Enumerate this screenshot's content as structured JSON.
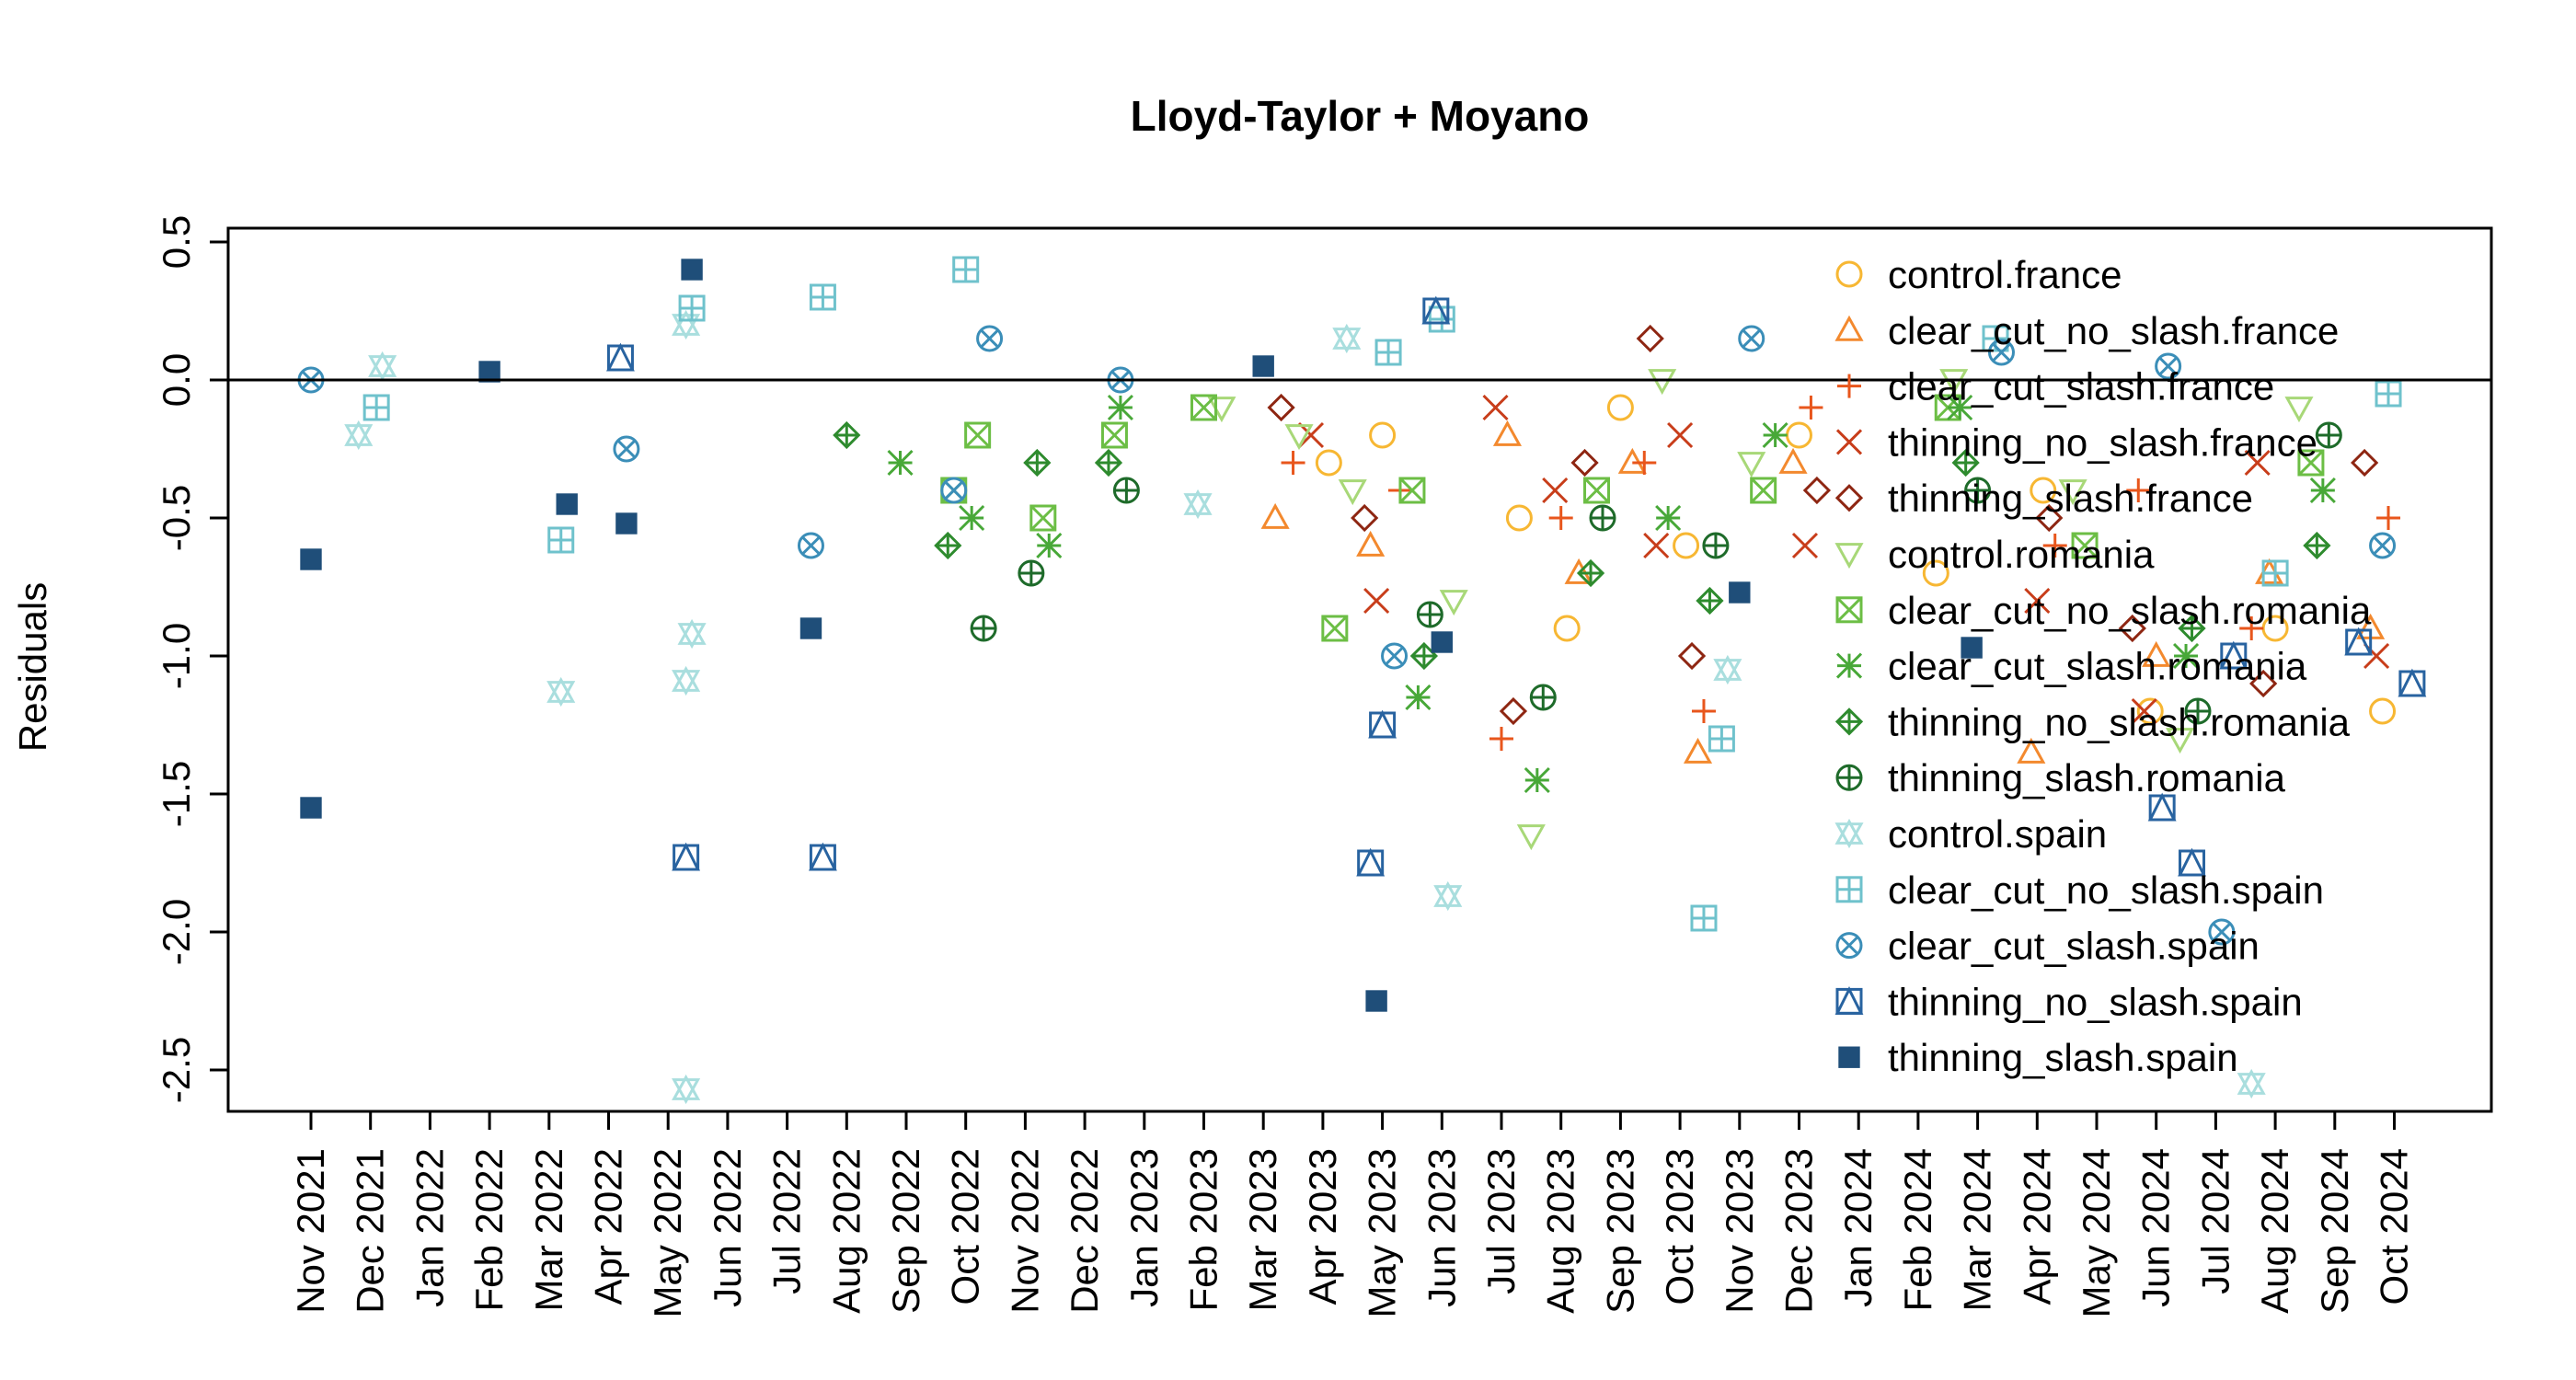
{
  "chart_data": {
    "type": "scatter",
    "title": "Lloyd-Taylor + Moyano",
    "xlabel": "",
    "ylabel": "Residuals",
    "ylim": [
      -2.65,
      0.55
    ],
    "yticks": [
      0.5,
      0.0,
      -0.5,
      -1.0,
      -1.5,
      -2.0,
      -2.5
    ],
    "ytick_labels": [
      "0.5",
      "0.0",
      "-0.5",
      "-1.0",
      "-1.5",
      "-2.0",
      "-2.5"
    ],
    "hline": 0,
    "categories": [
      "Nov 2021",
      "Dec 2021",
      "Jan 2022",
      "Feb 2022",
      "Mar 2022",
      "Apr 2022",
      "May 2022",
      "Jun 2022",
      "Jul 2022",
      "Aug 2022",
      "Sep 2022",
      "Oct 2022",
      "Nov 2022",
      "Dec 2022",
      "Jan 2023",
      "Feb 2023",
      "Mar 2023",
      "Apr 2023",
      "May 2023",
      "Jun 2023",
      "Jul 2023",
      "Aug 2023",
      "Sep 2023",
      "Oct 2023",
      "Nov 2023",
      "Dec 2023",
      "Jan 2024",
      "Feb 2024",
      "Mar 2024",
      "Apr 2024",
      "May 2024",
      "Jun 2024",
      "Jul 2024",
      "Aug 2024",
      "Sep 2024",
      "Oct 2024"
    ],
    "legend_position": "top-right",
    "series": [
      {
        "name": "control.france",
        "color": "#F7B733",
        "marker": "circle",
        "points": [
          [
            17.1,
            -0.3
          ],
          [
            18.0,
            -0.2
          ],
          [
            20.3,
            -0.5
          ],
          [
            21.1,
            -0.9
          ],
          [
            22.0,
            -0.1
          ],
          [
            23.1,
            -0.6
          ],
          [
            25.0,
            -0.2
          ],
          [
            27.3,
            -0.7
          ],
          [
            29.1,
            -0.4
          ],
          [
            30.9,
            -1.2
          ],
          [
            33.0,
            -0.9
          ],
          [
            34.8,
            -1.2
          ]
        ]
      },
      {
        "name": "clear_cut_no_slash.france",
        "color": "#F3892E",
        "marker": "triangle-up",
        "points": [
          [
            16.2,
            -0.5
          ],
          [
            17.8,
            -0.6
          ],
          [
            20.1,
            -0.2
          ],
          [
            21.3,
            -0.7
          ],
          [
            22.2,
            -0.3
          ],
          [
            23.3,
            -1.35
          ],
          [
            24.9,
            -0.3
          ],
          [
            28.9,
            -1.35
          ],
          [
            31.0,
            -1.0
          ],
          [
            32.9,
            -0.7
          ],
          [
            34.6,
            -0.9
          ]
        ]
      },
      {
        "name": "clear_cut_slash.france",
        "color": "#E8561C",
        "marker": "plus",
        "points": [
          [
            16.5,
            -0.3
          ],
          [
            18.3,
            -0.4
          ],
          [
            20.0,
            -1.3
          ],
          [
            21.0,
            -0.5
          ],
          [
            22.4,
            -0.3
          ],
          [
            23.4,
            -1.2
          ],
          [
            25.2,
            -0.1
          ],
          [
            29.3,
            -0.6
          ],
          [
            30.7,
            -0.4
          ],
          [
            32.6,
            -0.9
          ],
          [
            34.9,
            -0.5
          ]
        ]
      },
      {
        "name": "thinning_no_slash.france",
        "color": "#C83D1A",
        "marker": "x",
        "points": [
          [
            16.8,
            -0.2
          ],
          [
            17.9,
            -0.8
          ],
          [
            19.9,
            -0.1
          ],
          [
            20.9,
            -0.4
          ],
          [
            22.6,
            -0.6
          ],
          [
            23.0,
            -0.2
          ],
          [
            25.1,
            -0.6
          ],
          [
            29.0,
            -0.8
          ],
          [
            30.8,
            -1.2
          ],
          [
            32.7,
            -0.3
          ],
          [
            34.7,
            -1.0
          ]
        ]
      },
      {
        "name": "thinning_slash.france",
        "color": "#8E2612",
        "marker": "diamond",
        "points": [
          [
            16.3,
            -0.1
          ],
          [
            17.7,
            -0.5
          ],
          [
            20.2,
            -1.2
          ],
          [
            21.4,
            -0.3
          ],
          [
            22.5,
            0.15
          ],
          [
            23.2,
            -1.0
          ],
          [
            25.3,
            -0.4
          ],
          [
            29.2,
            -0.5
          ],
          [
            30.6,
            -0.9
          ],
          [
            32.8,
            -1.1
          ],
          [
            34.5,
            -0.3
          ]
        ]
      },
      {
        "name": "control.romania",
        "color": "#A8D878",
        "marker": "triangle-down",
        "points": [
          [
            15.3,
            -0.1
          ],
          [
            16.6,
            -0.2
          ],
          [
            17.5,
            -0.4
          ],
          [
            19.2,
            -0.8
          ],
          [
            20.5,
            -1.65
          ],
          [
            22.7,
            0.0
          ],
          [
            24.2,
            -0.3
          ],
          [
            27.6,
            0.0
          ],
          [
            29.6,
            -0.4
          ],
          [
            31.4,
            -1.3
          ],
          [
            33.4,
            -0.1
          ]
        ]
      },
      {
        "name": "clear_cut_no_slash.romania",
        "color": "#6CBE45",
        "marker": "box-x",
        "points": [
          [
            10.8,
            -0.4
          ],
          [
            11.2,
            -0.2
          ],
          [
            12.3,
            -0.5
          ],
          [
            13.5,
            -0.2
          ],
          [
            15.0,
            -0.1
          ],
          [
            17.2,
            -0.9
          ],
          [
            18.5,
            -0.4
          ],
          [
            21.6,
            -0.4
          ],
          [
            24.4,
            -0.4
          ],
          [
            27.5,
            -0.1
          ],
          [
            29.8,
            -0.6
          ],
          [
            33.6,
            -0.3
          ]
        ]
      },
      {
        "name": "clear_cut_slash.romania",
        "color": "#48A838",
        "marker": "asterisk",
        "points": [
          [
            9.9,
            -0.3
          ],
          [
            11.1,
            -0.5
          ],
          [
            12.4,
            -0.6
          ],
          [
            13.6,
            -0.1
          ],
          [
            18.6,
            -1.15
          ],
          [
            20.6,
            -1.45
          ],
          [
            22.8,
            -0.5
          ],
          [
            24.6,
            -0.2
          ],
          [
            27.7,
            -0.1
          ],
          [
            31.5,
            -1.0
          ],
          [
            33.8,
            -0.4
          ]
        ]
      },
      {
        "name": "thinning_no_slash.romania",
        "color": "#2E8B2E",
        "marker": "diamond-plus",
        "points": [
          [
            9.0,
            -0.2
          ],
          [
            10.7,
            -0.6
          ],
          [
            12.2,
            -0.3
          ],
          [
            13.4,
            -0.3
          ],
          [
            18.7,
            -1.0
          ],
          [
            21.5,
            -0.7
          ],
          [
            23.5,
            -0.8
          ],
          [
            27.8,
            -0.3
          ],
          [
            31.6,
            -0.9
          ],
          [
            33.7,
            -0.6
          ]
        ]
      },
      {
        "name": "thinning_slash.romania",
        "color": "#1E6B2A",
        "marker": "circle-plus",
        "points": [
          [
            11.3,
            -0.9
          ],
          [
            12.1,
            -0.7
          ],
          [
            13.7,
            -0.4
          ],
          [
            18.8,
            -0.85
          ],
          [
            20.7,
            -1.15
          ],
          [
            21.7,
            -0.5
          ],
          [
            23.6,
            -0.6
          ],
          [
            28.0,
            -0.4
          ],
          [
            31.7,
            -1.2
          ],
          [
            33.9,
            -0.2
          ]
        ]
      },
      {
        "name": "control.spain",
        "color": "#A9DEDE",
        "marker": "star-of-david",
        "points": [
          [
            0.8,
            -0.2
          ],
          [
            1.2,
            0.05
          ],
          [
            4.2,
            -1.13
          ],
          [
            6.3,
            0.2
          ],
          [
            6.4,
            -0.92
          ],
          [
            6.3,
            -1.09
          ],
          [
            6.3,
            -2.57
          ],
          [
            19.1,
            -1.87
          ],
          [
            14.9,
            -0.45
          ],
          [
            17.4,
            0.15
          ],
          [
            23.8,
            -1.05
          ],
          [
            32.6,
            -2.55
          ]
        ]
      },
      {
        "name": "clear_cut_no_slash.spain",
        "color": "#6FC2CC",
        "marker": "box-plus",
        "points": [
          [
            1.1,
            -0.1
          ],
          [
            4.2,
            -0.58
          ],
          [
            6.4,
            0.26
          ],
          [
            8.6,
            0.3
          ],
          [
            11.0,
            0.4
          ],
          [
            18.1,
            0.1
          ],
          [
            19.0,
            0.22
          ],
          [
            23.7,
            -1.3
          ],
          [
            23.4,
            -1.95
          ],
          [
            28.3,
            0.15
          ],
          [
            33.0,
            -0.7
          ],
          [
            34.9,
            -0.05
          ]
        ]
      },
      {
        "name": "clear_cut_slash.spain",
        "color": "#3B8EB8",
        "marker": "circle-x",
        "points": [
          [
            0.0,
            0.0
          ],
          [
            5.3,
            -0.25
          ],
          [
            8.4,
            -0.6
          ],
          [
            10.8,
            -0.4
          ],
          [
            11.4,
            0.15
          ],
          [
            13.6,
            0.0
          ],
          [
            18.2,
            -1.0
          ],
          [
            24.2,
            0.15
          ],
          [
            28.4,
            0.1
          ],
          [
            31.2,
            0.05
          ],
          [
            32.1,
            -2.0
          ],
          [
            34.8,
            -0.6
          ]
        ]
      },
      {
        "name": "thinning_no_slash.spain",
        "color": "#2863A0",
        "marker": "triangle-box",
        "points": [
          [
            5.2,
            0.08
          ],
          [
            6.3,
            -1.73
          ],
          [
            8.6,
            -1.73
          ],
          [
            18.0,
            -1.25
          ],
          [
            17.8,
            -1.75
          ],
          [
            18.9,
            0.25
          ],
          [
            31.6,
            -1.75
          ],
          [
            31.1,
            -1.55
          ],
          [
            32.3,
            -1.0
          ],
          [
            35.3,
            -1.1
          ],
          [
            34.4,
            -0.95
          ]
        ]
      },
      {
        "name": "thinning_slash.spain",
        "color": "#1F4E79",
        "marker": "square-filled",
        "points": [
          [
            0.0,
            -0.65
          ],
          [
            0.0,
            -1.55
          ],
          [
            3.0,
            0.03
          ],
          [
            4.3,
            -0.45
          ],
          [
            5.3,
            -0.52
          ],
          [
            6.4,
            0.4
          ],
          [
            8.4,
            -0.9
          ],
          [
            16.0,
            0.05
          ],
          [
            17.9,
            -2.25
          ],
          [
            19.0,
            -0.95
          ],
          [
            24.0,
            -0.77
          ],
          [
            27.9,
            -0.97
          ]
        ]
      }
    ]
  }
}
